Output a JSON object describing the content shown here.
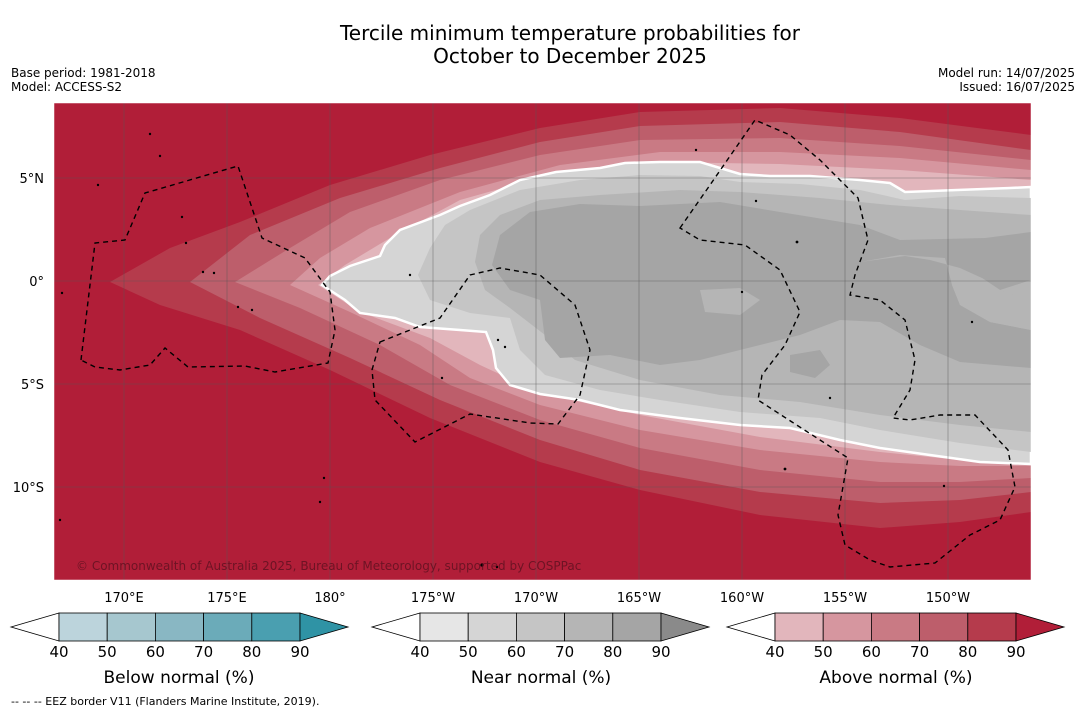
{
  "title_line1": "Tercile minimum temperature probabilities for",
  "title_line2": "October to December 2025",
  "base_period": "Base period: 1981-2018",
  "model": "Model: ACCESS-S2",
  "model_run": "Model run: 14/07/2025",
  "issued": "Issued: 16/07/2025",
  "copyright": "© Commonwealth of Australia 2025, Bureau of Meteorology, supported by COSPPac",
  "footnote": "--  --  -- EEZ border V11 (Flanders Marine Institute, 2019).",
  "map": {
    "lat_labels": [
      {
        "text": "5°N",
        "lat": 5
      },
      {
        "text": "0°",
        "lat": 0
      },
      {
        "text": "5°S",
        "lat": -5
      },
      {
        "text": "10°S",
        "lat": -10
      }
    ],
    "lon_labels": [
      {
        "text": "170°E",
        "lon": 170
      },
      {
        "text": "175°E",
        "lon": 175
      },
      {
        "text": "180°",
        "lon": 180
      },
      {
        "text": "175°W",
        "lon": 185
      },
      {
        "text": "170°W",
        "lon": 190
      },
      {
        "text": "165°W",
        "lon": 195
      },
      {
        "text": "160°W",
        "lon": 200
      },
      {
        "text": "155°W",
        "lon": 205
      },
      {
        "text": "150°W",
        "lon": 210
      }
    ]
  },
  "colorbars": [
    {
      "label": "Below normal (%)",
      "ticks": [
        "40",
        "50",
        "60",
        "70",
        "80",
        "90"
      ],
      "colors": [
        "#ffffff",
        "#bcd4dc",
        "#a6c7cf",
        "#89b7c3",
        "#6babb9",
        "#4a9fb0",
        "#2f93a5"
      ]
    },
    {
      "label": "Near normal (%)",
      "ticks": [
        "40",
        "50",
        "60",
        "70",
        "80",
        "90"
      ],
      "colors": [
        "#ffffff",
        "#e6e6e6",
        "#d5d5d5",
        "#c5c5c5",
        "#b5b5b5",
        "#a5a5a5",
        "#8a8a8a"
      ]
    },
    {
      "label": "Above normal (%)",
      "ticks": [
        "40",
        "50",
        "60",
        "70",
        "80",
        "90"
      ],
      "colors": [
        "#ffffff",
        "#e2b6bc",
        "#d6969f",
        "#c97a84",
        "#bd5e6b",
        "#b53b4c",
        "#b11e38"
      ]
    }
  ]
}
